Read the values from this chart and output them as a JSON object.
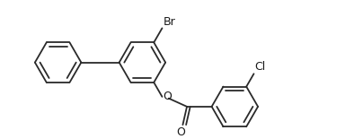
{
  "bg_color": "#ffffff",
  "line_color": "#2a2a2a",
  "line_width": 1.3,
  "text_color": "#1a1a1a",
  "font_size": 9,
  "figsize": [
    3.94,
    1.55
  ],
  "dpi": 100,
  "label_Br": "Br",
  "label_Cl": "Cl",
  "label_O_ester": "O",
  "label_O_carbonyl": "O"
}
